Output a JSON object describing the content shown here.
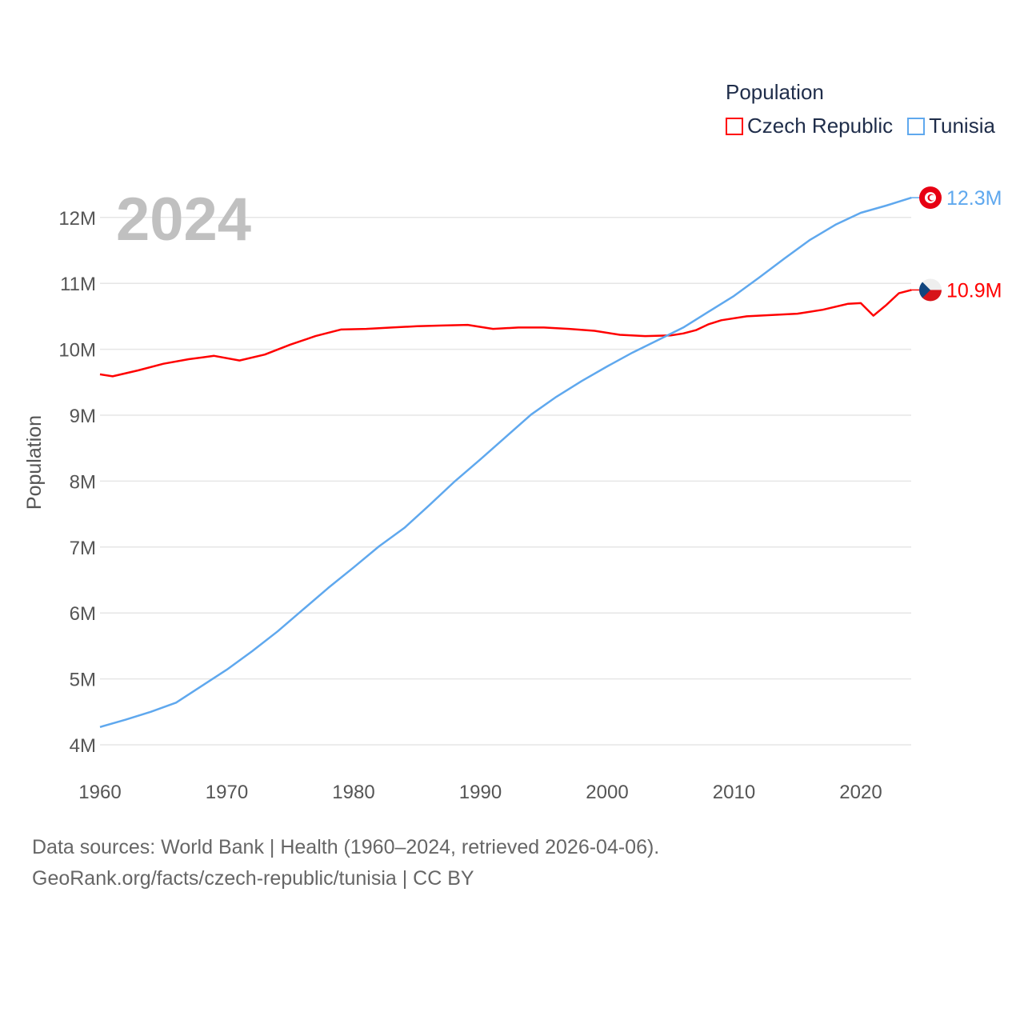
{
  "chart_data": {
    "type": "line",
    "title": "Population",
    "year_label": "2024",
    "ylabel": "Population",
    "xlabel": "",
    "xlim": [
      1960,
      2024
    ],
    "ylim": [
      4,
      12.3
    ],
    "x_ticks": [
      1960,
      1970,
      1980,
      1990,
      2000,
      2010,
      2020
    ],
    "y_ticks": [
      4,
      5,
      6,
      7,
      8,
      9,
      10,
      11,
      12
    ],
    "y_tick_labels": [
      "4M",
      "5M",
      "6M",
      "7M",
      "8M",
      "9M",
      "10M",
      "11M",
      "12M"
    ],
    "grid": true,
    "legend_position": "top-right",
    "series": [
      {
        "name": "Czech Republic",
        "color": "#ff0000",
        "end_label": "10.9M",
        "flag": "czech-flag",
        "x": [
          1960,
          1961,
          1963,
          1965,
          1967,
          1969,
          1971,
          1973,
          1975,
          1977,
          1979,
          1981,
          1983,
          1985,
          1987,
          1989,
          1991,
          1993,
          1995,
          1997,
          1999,
          2001,
          2003,
          2005,
          2006,
          2007,
          2008,
          2009,
          2011,
          2013,
          2015,
          2017,
          2019,
          2020,
          2021,
          2022,
          2023,
          2024
        ],
        "values": [
          9.62,
          9.59,
          9.68,
          9.78,
          9.85,
          9.9,
          9.83,
          9.92,
          10.07,
          10.2,
          10.3,
          10.31,
          10.33,
          10.35,
          10.36,
          10.37,
          10.31,
          10.33,
          10.33,
          10.31,
          10.28,
          10.22,
          10.2,
          10.21,
          10.24,
          10.29,
          10.38,
          10.44,
          10.5,
          10.52,
          10.54,
          10.6,
          10.69,
          10.7,
          10.51,
          10.67,
          10.85,
          10.9
        ]
      },
      {
        "name": "Tunisia",
        "color": "#5fa8ee",
        "end_label": "12.3M",
        "flag": "tunisia-flag",
        "x": [
          1960,
          1962,
          1964,
          1966,
          1968,
          1970,
          1972,
          1974,
          1976,
          1978,
          1980,
          1982,
          1984,
          1986,
          1988,
          1990,
          1992,
          1994,
          1996,
          1998,
          2000,
          2002,
          2004,
          2006,
          2008,
          2010,
          2012,
          2014,
          2016,
          2018,
          2020,
          2022,
          2024
        ],
        "values": [
          4.27,
          4.38,
          4.5,
          4.64,
          4.89,
          5.14,
          5.42,
          5.72,
          6.05,
          6.38,
          6.69,
          7.01,
          7.29,
          7.64,
          8.0,
          8.33,
          8.67,
          9.01,
          9.28,
          9.52,
          9.74,
          9.95,
          10.14,
          10.33,
          10.57,
          10.81,
          11.09,
          11.38,
          11.66,
          11.89,
          12.07,
          12.18,
          12.3
        ]
      }
    ]
  },
  "footer": {
    "line1": "Data sources: World Bank | Health (1960–2024, retrieved 2026-04-06).",
    "line2": "GeoRank.org/facts/czech-republic/tunisia | CC BY"
  }
}
